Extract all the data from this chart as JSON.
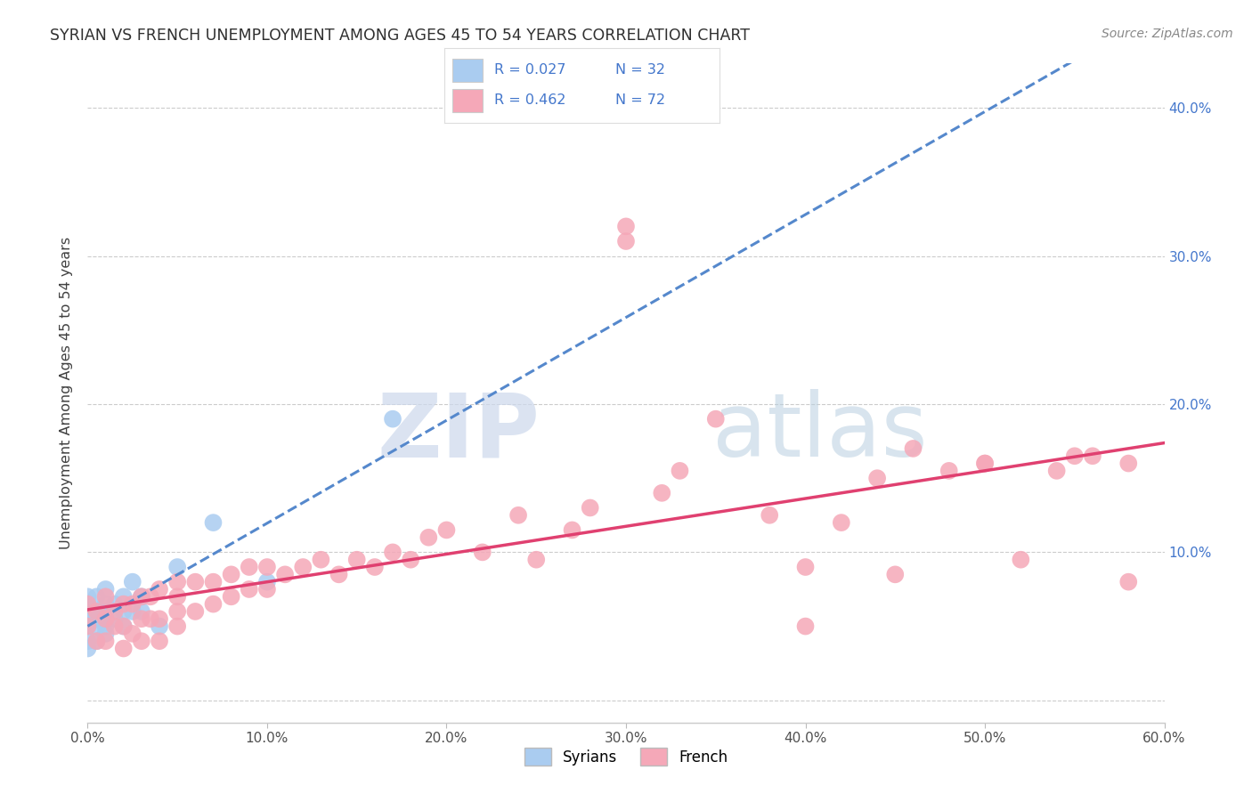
{
  "title": "SYRIAN VS FRENCH UNEMPLOYMENT AMONG AGES 45 TO 54 YEARS CORRELATION CHART",
  "source": "Source: ZipAtlas.com",
  "ylabel": "Unemployment Among Ages 45 to 54 years",
  "xlim": [
    0,
    0.6
  ],
  "ylim": [
    -0.015,
    0.43
  ],
  "xticks": [
    0.0,
    0.1,
    0.2,
    0.3,
    0.4,
    0.5,
    0.6
  ],
  "xticklabels": [
    "0.0%",
    "10.0%",
    "20.0%",
    "30.0%",
    "40.0%",
    "50.0%",
    "60.0%"
  ],
  "yticks": [
    0.0,
    0.1,
    0.2,
    0.3,
    0.4
  ],
  "yticklabels": [
    "",
    "10.0%",
    "20.0%",
    "30.0%",
    "40.0%"
  ],
  "legend_r_syrian": "R = 0.027",
  "legend_n_syrian": "N = 32",
  "legend_r_french": "R = 0.462",
  "legend_n_french": "N = 72",
  "syrian_color": "#aaccf0",
  "french_color": "#f5a8b8",
  "syrian_line_color": "#5588cc",
  "french_line_color": "#e04070",
  "title_color": "#303030",
  "tick_color_right": "#4477cc",
  "watermark_zip_color": "#d0dff0",
  "watermark_atlas_color": "#b8d4e8",
  "background_color": "#ffffff",
  "syrian_scatter": {
    "x": [
      0.0,
      0.0,
      0.0,
      0.0,
      0.0,
      0.0,
      0.0,
      0.005,
      0.005,
      0.005,
      0.005,
      0.005,
      0.01,
      0.01,
      0.01,
      0.01,
      0.01,
      0.01,
      0.015,
      0.015,
      0.02,
      0.02,
      0.02,
      0.025,
      0.025,
      0.03,
      0.03,
      0.04,
      0.05,
      0.07,
      0.1,
      0.17
    ],
    "y": [
      0.04,
      0.05,
      0.055,
      0.06,
      0.065,
      0.07,
      0.035,
      0.04,
      0.05,
      0.055,
      0.06,
      0.07,
      0.045,
      0.05,
      0.055,
      0.06,
      0.065,
      0.075,
      0.055,
      0.065,
      0.05,
      0.06,
      0.07,
      0.06,
      0.08,
      0.06,
      0.07,
      0.05,
      0.09,
      0.12,
      0.08,
      0.19
    ]
  },
  "french_scatter": {
    "x": [
      0.0,
      0.0,
      0.005,
      0.005,
      0.01,
      0.01,
      0.01,
      0.015,
      0.015,
      0.02,
      0.02,
      0.02,
      0.025,
      0.025,
      0.03,
      0.03,
      0.03,
      0.035,
      0.035,
      0.04,
      0.04,
      0.04,
      0.05,
      0.05,
      0.05,
      0.05,
      0.06,
      0.06,
      0.07,
      0.07,
      0.08,
      0.08,
      0.09,
      0.09,
      0.1,
      0.1,
      0.11,
      0.12,
      0.13,
      0.14,
      0.15,
      0.16,
      0.17,
      0.18,
      0.19,
      0.2,
      0.22,
      0.24,
      0.25,
      0.27,
      0.28,
      0.3,
      0.3,
      0.32,
      0.33,
      0.35,
      0.38,
      0.4,
      0.42,
      0.44,
      0.46,
      0.48,
      0.5,
      0.52,
      0.54,
      0.56,
      0.58,
      0.58,
      0.4,
      0.45,
      0.5,
      0.55
    ],
    "y": [
      0.05,
      0.065,
      0.04,
      0.06,
      0.04,
      0.055,
      0.07,
      0.05,
      0.06,
      0.035,
      0.05,
      0.065,
      0.045,
      0.065,
      0.04,
      0.055,
      0.07,
      0.055,
      0.07,
      0.04,
      0.055,
      0.075,
      0.05,
      0.06,
      0.07,
      0.08,
      0.06,
      0.08,
      0.065,
      0.08,
      0.07,
      0.085,
      0.075,
      0.09,
      0.075,
      0.09,
      0.085,
      0.09,
      0.095,
      0.085,
      0.095,
      0.09,
      0.1,
      0.095,
      0.11,
      0.115,
      0.1,
      0.125,
      0.095,
      0.115,
      0.13,
      0.32,
      0.31,
      0.14,
      0.155,
      0.19,
      0.125,
      0.05,
      0.12,
      0.15,
      0.17,
      0.155,
      0.16,
      0.095,
      0.155,
      0.165,
      0.16,
      0.08,
      0.09,
      0.085,
      0.16,
      0.165
    ]
  }
}
